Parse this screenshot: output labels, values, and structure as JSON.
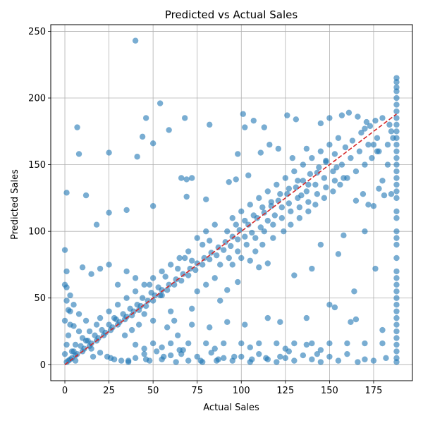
{
  "chart_data": {
    "type": "scatter",
    "title": "Predicted vs Actual Sales",
    "xlabel": "Actual Sales",
    "ylabel": "Predicted Sales",
    "xlim": [
      -8,
      197
    ],
    "ylim": [
      -12,
      255
    ],
    "xticks": [
      0,
      25,
      50,
      75,
      100,
      125,
      150,
      175
    ],
    "yticks": [
      0,
      50,
      100,
      150,
      200,
      250
    ],
    "grid": true,
    "point_color": "#1f77b4",
    "point_alpha": 0.6,
    "reference_line": {
      "from": [
        0,
        0
      ],
      "to": [
        188,
        188
      ],
      "color": "#d62728",
      "style": "dashed"
    },
    "points": [
      [
        40,
        243
      ],
      [
        54,
        196
      ],
      [
        101,
        188
      ],
      [
        46,
        185
      ],
      [
        68,
        185
      ],
      [
        82,
        180
      ],
      [
        7,
        178
      ],
      [
        59,
        176
      ],
      [
        44,
        171
      ],
      [
        50,
        166
      ],
      [
        8,
        158
      ],
      [
        25,
        159
      ],
      [
        98,
        158
      ],
      [
        111,
        159
      ],
      [
        41,
        156
      ],
      [
        72,
        140
      ],
      [
        66,
        140
      ],
      [
        69,
        139
      ],
      [
        80,
        124
      ],
      [
        12,
        127
      ],
      [
        1,
        129
      ],
      [
        69,
        126
      ],
      [
        35,
        116
      ],
      [
        25,
        114
      ],
      [
        50,
        119
      ],
      [
        18,
        105
      ],
      [
        97,
        139
      ],
      [
        104,
        142
      ],
      [
        93,
        137
      ],
      [
        132,
        138
      ],
      [
        116,
        165
      ],
      [
        131,
        184
      ],
      [
        126,
        187
      ],
      [
        107,
        183
      ],
      [
        113,
        178
      ],
      [
        102,
        178
      ],
      [
        121,
        162
      ],
      [
        137,
        162
      ],
      [
        129,
        155
      ],
      [
        145,
        181
      ],
      [
        150,
        185
      ],
      [
        157,
        187
      ],
      [
        161,
        189
      ],
      [
        166,
        186
      ],
      [
        170,
        177
      ],
      [
        171,
        182
      ],
      [
        175,
        165
      ],
      [
        177,
        160
      ],
      [
        183,
        150
      ],
      [
        180,
        138
      ],
      [
        178,
        132
      ],
      [
        185,
        128
      ],
      [
        181,
        127
      ],
      [
        172,
        120
      ],
      [
        175,
        119
      ],
      [
        169,
        128
      ],
      [
        165,
        123
      ],
      [
        158,
        140
      ],
      [
        154,
        148
      ],
      [
        148,
        152
      ],
      [
        143,
        144
      ],
      [
        138,
        135
      ],
      [
        134,
        127
      ],
      [
        127,
        121
      ],
      [
        123,
        118
      ],
      [
        119,
        112
      ],
      [
        115,
        108
      ],
      [
        111,
        103
      ],
      [
        106,
        99
      ],
      [
        102,
        96
      ],
      [
        98,
        94
      ],
      [
        94,
        89
      ],
      [
        90,
        86
      ],
      [
        86,
        82
      ],
      [
        82,
        79
      ],
      [
        78,
        75
      ],
      [
        74,
        71
      ],
      [
        70,
        67
      ],
      [
        66,
        63
      ],
      [
        62,
        60
      ],
      [
        58,
        56
      ],
      [
        54,
        52
      ],
      [
        50,
        48
      ],
      [
        46,
        44
      ],
      [
        42,
        41
      ],
      [
        38,
        37
      ],
      [
        34,
        34
      ],
      [
        30,
        30
      ],
      [
        26,
        26
      ],
      [
        22,
        22
      ],
      [
        18,
        18
      ],
      [
        14,
        14
      ],
      [
        10,
        10
      ],
      [
        6,
        7
      ],
      [
        3,
        4
      ],
      [
        1,
        2
      ],
      [
        0,
        8
      ],
      [
        1,
        15
      ],
      [
        2,
        22
      ],
      [
        3,
        30
      ],
      [
        0,
        33
      ],
      [
        2,
        41
      ],
      [
        1,
        48
      ],
      [
        3,
        52
      ],
      [
        1,
        58
      ],
      [
        0,
        60
      ],
      [
        1,
        70
      ],
      [
        0,
        86
      ],
      [
        5,
        29
      ],
      [
        8,
        25
      ],
      [
        12,
        18
      ],
      [
        15,
        12
      ],
      [
        20,
        9
      ],
      [
        24,
        6
      ],
      [
        28,
        4
      ],
      [
        32,
        3
      ],
      [
        36,
        2
      ],
      [
        40,
        5
      ],
      [
        45,
        8
      ],
      [
        48,
        3
      ],
      [
        52,
        10
      ],
      [
        55,
        4
      ],
      [
        60,
        7
      ],
      [
        63,
        2
      ],
      [
        67,
        11
      ],
      [
        70,
        3
      ],
      [
        75,
        6
      ],
      [
        78,
        2
      ],
      [
        83,
        9
      ],
      [
        86,
        3
      ],
      [
        90,
        5
      ],
      [
        95,
        3
      ],
      [
        100,
        6
      ],
      [
        105,
        2
      ],
      [
        110,
        8
      ],
      [
        115,
        4
      ],
      [
        120,
        2
      ],
      [
        125,
        5
      ],
      [
        130,
        3
      ],
      [
        135,
        7
      ],
      [
        140,
        4
      ],
      [
        145,
        2
      ],
      [
        150,
        6
      ],
      [
        155,
        3
      ],
      [
        160,
        8
      ],
      [
        166,
        2
      ],
      [
        170,
        4
      ],
      [
        175,
        3
      ],
      [
        182,
        5
      ],
      [
        40,
        15
      ],
      [
        50,
        16
      ],
      [
        60,
        16
      ],
      [
        70,
        16
      ],
      [
        80,
        16
      ],
      [
        90,
        16
      ],
      [
        100,
        16
      ],
      [
        110,
        16
      ],
      [
        120,
        16
      ],
      [
        130,
        16
      ],
      [
        140,
        16
      ],
      [
        150,
        16
      ],
      [
        160,
        16
      ],
      [
        170,
        16
      ],
      [
        180,
        16
      ],
      [
        45,
        12
      ],
      [
        55,
        13
      ],
      [
        65,
        11
      ],
      [
        85,
        12
      ],
      [
        105,
        13
      ],
      [
        125,
        12
      ],
      [
        145,
        11
      ],
      [
        62,
        33
      ],
      [
        72,
        30
      ],
      [
        82,
        28
      ],
      [
        92,
        32
      ],
      [
        102,
        30
      ],
      [
        115,
        35
      ],
      [
        122,
        32
      ],
      [
        137,
        35
      ],
      [
        162,
        32
      ],
      [
        164,
        55
      ],
      [
        155,
        83
      ],
      [
        150,
        45
      ],
      [
        153,
        43
      ],
      [
        158,
        97
      ],
      [
        145,
        90
      ],
      [
        140,
        72
      ],
      [
        130,
        67
      ],
      [
        115,
        76
      ],
      [
        110,
        73
      ],
      [
        105,
        78
      ],
      [
        92,
        56
      ],
      [
        98,
        62
      ],
      [
        88,
        48
      ],
      [
        72,
        42
      ],
      [
        60,
        40
      ],
      [
        55,
        52
      ],
      [
        48,
        60
      ],
      [
        40,
        65
      ],
      [
        35,
        70
      ],
      [
        30,
        60
      ],
      [
        25,
        75
      ],
      [
        20,
        72
      ],
      [
        15,
        68
      ],
      [
        10,
        73
      ],
      [
        5,
        45
      ],
      [
        8,
        38
      ],
      [
        3,
        40
      ],
      [
        12,
        33
      ],
      [
        64,
        22
      ],
      [
        58,
        28
      ],
      [
        42,
        30
      ],
      [
        38,
        26
      ],
      [
        34,
        22
      ],
      [
        28,
        35
      ],
      [
        45,
        38
      ],
      [
        50,
        33
      ],
      [
        75,
        55
      ],
      [
        80,
        60
      ],
      [
        85,
        65
      ],
      [
        95,
        75
      ],
      [
        100,
        80
      ],
      [
        108,
        85
      ],
      [
        112,
        90
      ],
      [
        118,
        95
      ],
      [
        124,
        100
      ],
      [
        128,
        105
      ],
      [
        133,
        110
      ],
      [
        138,
        115
      ],
      [
        142,
        120
      ],
      [
        147,
        125
      ],
      [
        152,
        130
      ],
      [
        156,
        135
      ],
      [
        160,
        140
      ],
      [
        165,
        145
      ],
      [
        170,
        150
      ],
      [
        174,
        155
      ],
      [
        178,
        160
      ],
      [
        183,
        165
      ],
      [
        186,
        170
      ],
      [
        185,
        175
      ],
      [
        184,
        180
      ],
      [
        180,
        185
      ],
      [
        176,
        183
      ],
      [
        173,
        179
      ],
      [
        168,
        174
      ],
      [
        163,
        168
      ],
      [
        159,
        163
      ],
      [
        153,
        158
      ],
      [
        148,
        153
      ],
      [
        144,
        148
      ],
      [
        139,
        143
      ],
      [
        135,
        138
      ],
      [
        131,
        133
      ],
      [
        126,
        128
      ],
      [
        121,
        123
      ],
      [
        117,
        119
      ],
      [
        113,
        114
      ],
      [
        109,
        110
      ],
      [
        104,
        105
      ],
      [
        99,
        101
      ],
      [
        95,
        96
      ],
      [
        91,
        92
      ],
      [
        87,
        88
      ],
      [
        83,
        84
      ],
      [
        79,
        80
      ],
      [
        75,
        76
      ],
      [
        71,
        72
      ],
      [
        67,
        68
      ],
      [
        63,
        64
      ],
      [
        59,
        60
      ],
      [
        55,
        56
      ],
      [
        51,
        52
      ],
      [
        47,
        48
      ],
      [
        43,
        44
      ],
      [
        39,
        40
      ],
      [
        35,
        36
      ],
      [
        31,
        32
      ],
      [
        27,
        28
      ],
      [
        23,
        24
      ],
      [
        19,
        20
      ],
      [
        15,
        16
      ],
      [
        11,
        12
      ],
      [
        7,
        8
      ],
      [
        4,
        5
      ],
      [
        2,
        3
      ],
      [
        95,
        110
      ],
      [
        100,
        115
      ],
      [
        105,
        120
      ],
      [
        110,
        125
      ],
      [
        115,
        130
      ],
      [
        120,
        135
      ],
      [
        125,
        140
      ],
      [
        130,
        145
      ],
      [
        135,
        150
      ],
      [
        140,
        155
      ],
      [
        145,
        160
      ],
      [
        150,
        165
      ],
      [
        155,
        170
      ],
      [
        92,
        100
      ],
      [
        97,
        105
      ],
      [
        102,
        108
      ],
      [
        107,
        112
      ],
      [
        112,
        118
      ],
      [
        117,
        122
      ],
      [
        122,
        128
      ],
      [
        127,
        132
      ],
      [
        132,
        125
      ],
      [
        137,
        130
      ],
      [
        142,
        135
      ],
      [
        147,
        140
      ],
      [
        152,
        145
      ],
      [
        157,
        150
      ],
      [
        162,
        155
      ],
      [
        167,
        160
      ],
      [
        172,
        165
      ],
      [
        177,
        170
      ],
      [
        80,
        100
      ],
      [
        85,
        105
      ],
      [
        70,
        85
      ],
      [
        65,
        80
      ],
      [
        60,
        75
      ],
      [
        55,
        70
      ],
      [
        50,
        65
      ],
      [
        45,
        60
      ],
      [
        40,
        55
      ],
      [
        35,
        50
      ],
      [
        30,
        45
      ],
      [
        25,
        40
      ],
      [
        20,
        35
      ],
      [
        18,
        30
      ],
      [
        14,
        25
      ],
      [
        10,
        20
      ],
      [
        6,
        15
      ],
      [
        4,
        10
      ],
      [
        88,
        75
      ],
      [
        93,
        80
      ],
      [
        98,
        85
      ],
      [
        103,
        90
      ],
      [
        108,
        95
      ],
      [
        113,
        100
      ],
      [
        118,
        105
      ],
      [
        123,
        110
      ],
      [
        128,
        115
      ],
      [
        133,
        118
      ],
      [
        138,
        122
      ],
      [
        143,
        128
      ],
      [
        148,
        133
      ],
      [
        153,
        138
      ],
      [
        75,
        95
      ],
      [
        78,
        90
      ],
      [
        82,
        93
      ],
      [
        68,
        80
      ],
      [
        72,
        78
      ],
      [
        64,
        72
      ],
      [
        57,
        66
      ],
      [
        53,
        58
      ],
      [
        49,
        54
      ],
      [
        44,
        50
      ],
      [
        41,
        45
      ],
      [
        37,
        42
      ],
      [
        33,
        38
      ],
      [
        29,
        34
      ],
      [
        25,
        30
      ],
      [
        21,
        26
      ],
      [
        17,
        22
      ],
      [
        13,
        18
      ],
      [
        9,
        14
      ],
      [
        5,
        10
      ],
      [
        188,
        215
      ],
      [
        188,
        212
      ],
      [
        188,
        208
      ],
      [
        188,
        205
      ],
      [
        188,
        200
      ],
      [
        188,
        195
      ],
      [
        188,
        190
      ],
      [
        188,
        185
      ],
      [
        188,
        180
      ],
      [
        188,
        175
      ],
      [
        188,
        170
      ],
      [
        188,
        165
      ],
      [
        188,
        160
      ],
      [
        188,
        155
      ],
      [
        188,
        150
      ],
      [
        188,
        145
      ],
      [
        188,
        140
      ],
      [
        188,
        135
      ],
      [
        188,
        130
      ],
      [
        188,
        125
      ],
      [
        188,
        115
      ],
      [
        188,
        110
      ],
      [
        188,
        100
      ],
      [
        188,
        95
      ],
      [
        188,
        90
      ],
      [
        188,
        80
      ],
      [
        188,
        70
      ],
      [
        188,
        65
      ],
      [
        188,
        60
      ],
      [
        188,
        55
      ],
      [
        188,
        50
      ],
      [
        188,
        45
      ],
      [
        188,
        40
      ],
      [
        188,
        35
      ],
      [
        188,
        30
      ],
      [
        188,
        25
      ],
      [
        188,
        20
      ],
      [
        188,
        15
      ],
      [
        188,
        10
      ],
      [
        188,
        5
      ],
      [
        188,
        2
      ],
      [
        180,
        26
      ],
      [
        176,
        72
      ],
      [
        165,
        34
      ],
      [
        170,
        100
      ],
      [
        137,
        15
      ],
      [
        143,
        8
      ],
      [
        127,
        10
      ],
      [
        122,
        6
      ],
      [
        114,
        5
      ],
      [
        106,
        4
      ],
      [
        96,
        6
      ],
      [
        87,
        4
      ],
      [
        77,
        3
      ],
      [
        66,
        8
      ],
      [
        56,
        6
      ],
      [
        46,
        4
      ],
      [
        36,
        3
      ],
      [
        26,
        5
      ],
      [
        16,
        6
      ],
      [
        6,
        3
      ]
    ]
  }
}
